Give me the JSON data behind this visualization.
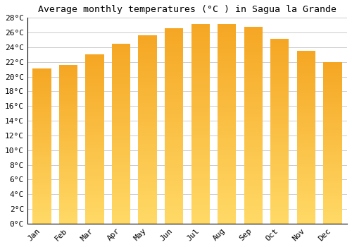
{
  "title": "Average monthly temperatures (°C ) in Sagua la Grande",
  "months": [
    "Jan",
    "Feb",
    "Mar",
    "Apr",
    "May",
    "Jun",
    "Jul",
    "Aug",
    "Sep",
    "Oct",
    "Nov",
    "Dec"
  ],
  "values": [
    21.1,
    21.6,
    23.0,
    24.5,
    25.6,
    26.6,
    27.2,
    27.2,
    26.8,
    25.1,
    23.5,
    22.0
  ],
  "bar_color_top": "#F5A623",
  "bar_color_bottom": "#FFD966",
  "background_color": "#FFFFFF",
  "grid_color": "#CCCCCC",
  "ylim": [
    0,
    28
  ],
  "yticks": [
    0,
    2,
    4,
    6,
    8,
    10,
    12,
    14,
    16,
    18,
    20,
    22,
    24,
    26,
    28
  ],
  "title_fontsize": 9.5,
  "tick_fontsize": 8,
  "font_family": "monospace",
  "bar_width": 0.7
}
